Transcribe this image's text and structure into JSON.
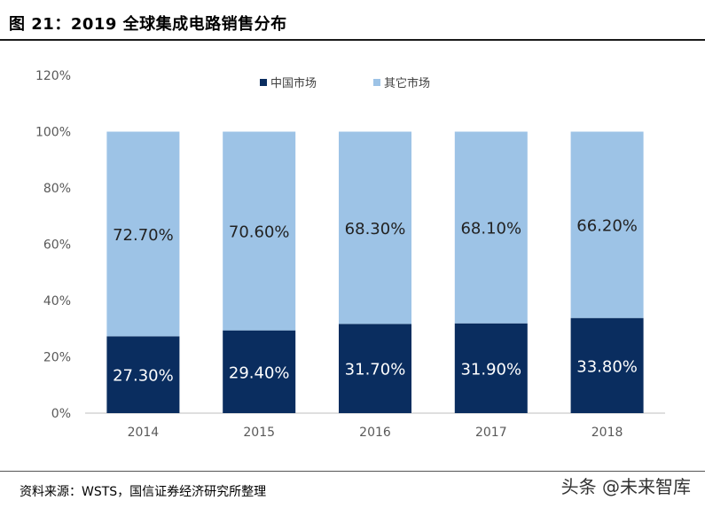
{
  "title": "图 21：2019 全球集成电路销售分布",
  "source": "资料来源：WSTS，国信证券经济研究所整理",
  "watermark": "头条 @未来智库",
  "colors": {
    "china": "#0a2d5f",
    "other": "#9dc3e6"
  },
  "chart_data": {
    "type": "bar",
    "stacked": true,
    "categories": [
      "2014",
      "2015",
      "2016",
      "2017",
      "2018"
    ],
    "series": [
      {
        "name": "中国市场",
        "values": [
          27.3,
          29.4,
          31.7,
          31.9,
          33.8
        ],
        "labels": [
          "27.30%",
          "29.40%",
          "31.70%",
          "31.90%",
          "33.80%"
        ]
      },
      {
        "name": "其它市场",
        "values": [
          72.7,
          70.6,
          68.3,
          68.1,
          66.2
        ],
        "labels": [
          "72.70%",
          "70.60%",
          "68.30%",
          "68.10%",
          "66.20%"
        ]
      }
    ],
    "yticks": [
      "0%",
      "20%",
      "40%",
      "60%",
      "80%",
      "100%",
      "120%"
    ],
    "ylim": [
      0,
      120
    ],
    "legend": "top-center",
    "grid": false
  }
}
